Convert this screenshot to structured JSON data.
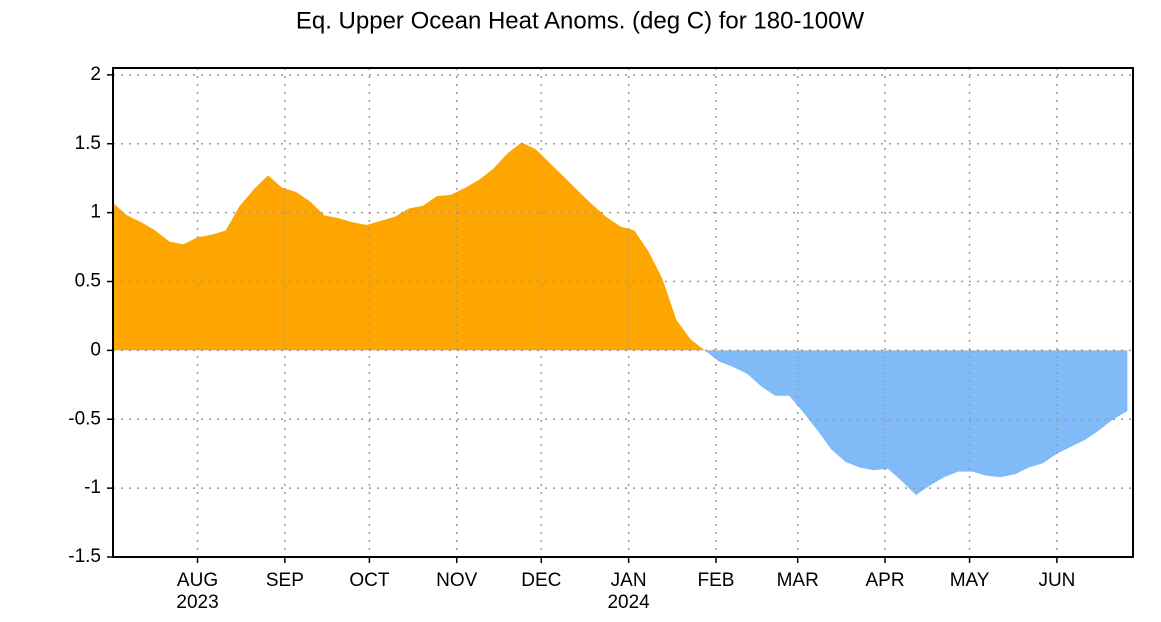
{
  "chart_data": {
    "type": "area",
    "title": "Eq. Upper Ocean Heat Anoms. (deg C) for 180-100W",
    "x": [
      0,
      5,
      10,
      15,
      20,
      25,
      30,
      35,
      40,
      45,
      50,
      55,
      60,
      65,
      70,
      75,
      80,
      85,
      90,
      95,
      100,
      105,
      110,
      115,
      120,
      125,
      130,
      135,
      140,
      145,
      150,
      155,
      160,
      165,
      170,
      175,
      180,
      185,
      190,
      195,
      200,
      205,
      210,
      215,
      220,
      225,
      230,
      235,
      240,
      245,
      250,
      255,
      260,
      265,
      270,
      275,
      280,
      285,
      290,
      295,
      300,
      305,
      310,
      315,
      320,
      325,
      330,
      335,
      340,
      345,
      350,
      355,
      360
    ],
    "values": [
      1.07,
      0.98,
      0.93,
      0.87,
      0.79,
      0.77,
      0.82,
      0.84,
      0.87,
      1.05,
      1.17,
      1.27,
      1.18,
      1.15,
      1.08,
      0.98,
      0.96,
      0.93,
      0.91,
      0.94,
      0.97,
      1.03,
      1.05,
      1.12,
      1.13,
      1.18,
      1.24,
      1.32,
      1.43,
      1.51,
      1.46,
      1.36,
      1.26,
      1.16,
      1.06,
      0.97,
      0.9,
      0.87,
      0.72,
      0.52,
      0.22,
      0.08,
      0.0,
      -0.08,
      -0.12,
      -0.17,
      -0.26,
      -0.33,
      -0.33,
      -0.45,
      -0.58,
      -0.72,
      -0.81,
      -0.85,
      -0.87,
      -0.86,
      -0.95,
      -1.05,
      -0.98,
      -0.92,
      -0.88,
      -0.88,
      -0.91,
      -0.92,
      -0.9,
      -0.85,
      -0.82,
      -0.75,
      -0.7,
      -0.65,
      -0.58,
      -0.5,
      -0.44
    ],
    "positive_color": "#ffa500",
    "negative_color": "#80bbf8",
    "xlim": [
      0,
      362
    ],
    "xticks": [
      {
        "value": 30,
        "label": "AUG",
        "sublabel": "2023"
      },
      {
        "value": 61,
        "label": "SEP"
      },
      {
        "value": 91,
        "label": "OCT"
      },
      {
        "value": 122,
        "label": "NOV"
      },
      {
        "value": 152,
        "label": "DEC"
      },
      {
        "value": 183,
        "label": "JAN",
        "sublabel": "2024"
      },
      {
        "value": 214,
        "label": "FEB"
      },
      {
        "value": 243,
        "label": "MAR"
      },
      {
        "value": 274,
        "label": "APR"
      },
      {
        "value": 304,
        "label": "MAY"
      },
      {
        "value": 335,
        "label": "JUN"
      }
    ],
    "ylim": [
      -1.5,
      2.05
    ],
    "yticks": [
      -1.5,
      -1,
      -0.5,
      0,
      0.5,
      1,
      1.5,
      2
    ],
    "grid": true
  }
}
